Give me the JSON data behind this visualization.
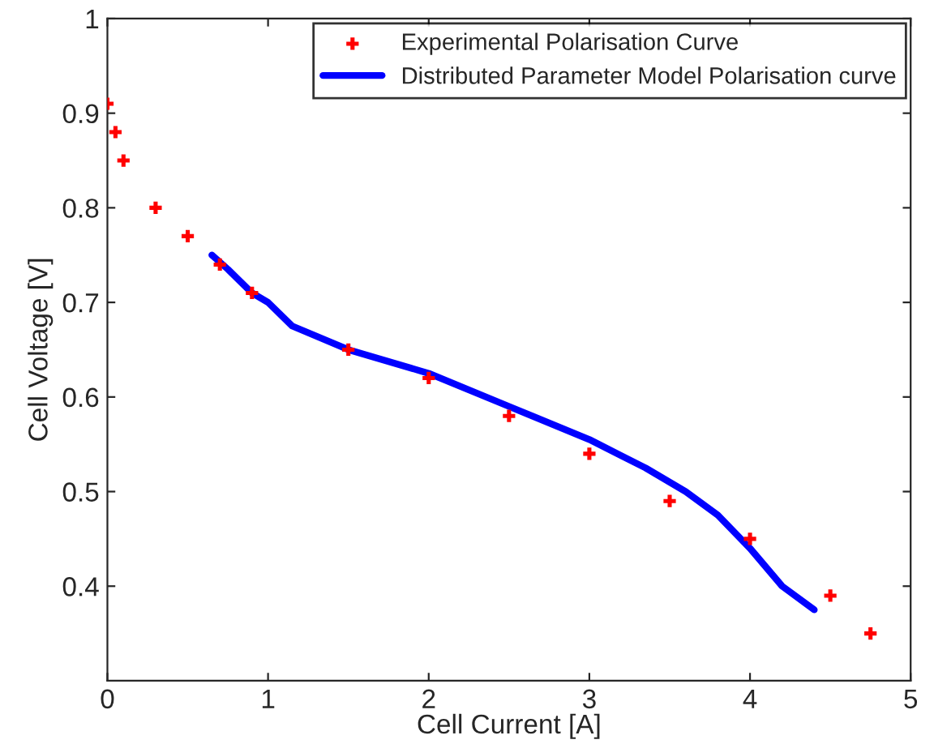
{
  "chart_data": {
    "type": "scatter",
    "xlabel": "Cell Current [A]",
    "ylabel": "Cell Voltage [V]",
    "xlim": [
      0,
      5
    ],
    "ylim": [
      0.3,
      1
    ],
    "xticks": [
      0,
      1,
      2,
      3,
      4,
      5
    ],
    "yticks": [
      0.4,
      0.5,
      0.6,
      0.7,
      0.8,
      0.9,
      1
    ],
    "grid": false,
    "legend": "top right",
    "series": [
      {
        "name": "Experimental Polarisation Curve",
        "marker": "cross",
        "color": "#ff0000",
        "x": [
          0,
          0.05,
          0.1,
          0.3,
          0.5,
          0.7,
          0.9,
          1.5,
          2,
          2.5,
          3,
          3.5,
          4,
          4.5,
          4.75
        ],
        "values": [
          0.91,
          0.88,
          0.85,
          0.8,
          0.77,
          0.74,
          0.71,
          0.65,
          0.62,
          0.58,
          0.54,
          0.49,
          0.45,
          0.39,
          0.35
        ]
      },
      {
        "name": "Distributed Parameter Model Polarisation curve",
        "type": "line",
        "line_style": "solid",
        "color": "#0000ff",
        "x": [
          0.65,
          0.75,
          0.9,
          1,
          1.15,
          1.5,
          2,
          2.5,
          3,
          3.35,
          3.6,
          3.8,
          4,
          4.2,
          4.4
        ],
        "values": [
          0.75,
          0.735,
          0.71,
          0.7,
          0.675,
          0.65,
          0.625,
          0.59,
          0.555,
          0.525,
          0.5,
          0.475,
          0.44,
          0.4,
          0.375
        ]
      }
    ]
  }
}
